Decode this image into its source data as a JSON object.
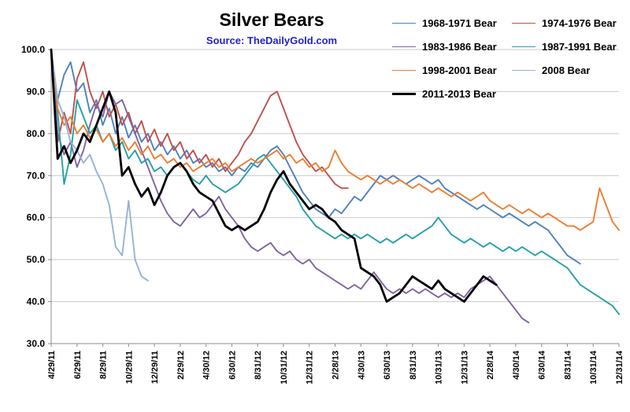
{
  "colors": {
    "background": "#FFFFFF",
    "subtitle_text": "#2222CC",
    "grid": "#C9C9C9",
    "axis": "#8C8C8C",
    "label_text": "#000000"
  },
  "chart_data": {
    "type": "line",
    "title": "Silver Bears",
    "subtitle": "Source: TheDailyGold.com",
    "grid": "horizontal",
    "legend_position": "top-right",
    "x_axis": {
      "tick_interval_months": 2,
      "tick_labels": [
        "4/29/11",
        "6/29/11",
        "8/29/11",
        "10/29/11",
        "12/29/11",
        "2/29/12",
        "4/30/12",
        "6/30/12",
        "8/31/12",
        "10/31/12",
        "12/31/12",
        "2/28/13",
        "4/30/13",
        "6/30/13",
        "8/31/13",
        "10/31/13",
        "12/31/13",
        "2/28/14",
        "4/30/14",
        "6/30/14",
        "8/31/14",
        "10/31/14",
        "12/31/14"
      ]
    },
    "y_axis": {
      "min": 30,
      "max": 100,
      "step": 10,
      "tick_labels": [
        "30.0",
        "40.0",
        "50.0",
        "60.0",
        "70.0",
        "80.0",
        "90.0",
        "100.0"
      ]
    },
    "series": [
      {
        "name": "1968-1971 Bear",
        "color": "#4F81BD",
        "line_width": 1.9,
        "start_month": 0,
        "step_months": 0.5,
        "values": [
          100,
          88,
          94,
          97,
          90,
          92,
          85,
          88,
          82,
          86,
          80,
          84,
          79,
          82,
          78,
          80,
          76,
          78,
          75,
          77,
          74,
          76,
          73,
          74,
          72,
          73,
          71,
          72,
          70,
          72,
          71,
          73,
          72,
          74,
          76,
          77,
          75,
          72,
          69,
          66,
          64,
          62,
          61,
          60,
          62,
          61,
          63,
          65,
          64,
          66,
          68,
          70,
          69,
          70,
          69,
          68,
          69,
          70,
          69,
          68,
          69,
          67,
          66,
          65,
          64,
          63,
          62,
          63,
          62,
          61,
          60,
          61,
          60,
          59,
          58,
          59,
          58,
          57,
          55,
          53,
          51,
          50,
          49
        ]
      },
      {
        "name": "1974-1976 Bear",
        "color": "#C0504D",
        "line_width": 1.9,
        "start_month": 0,
        "step_months": 0.5,
        "values": [
          100,
          78,
          85,
          80,
          93,
          97,
          90,
          86,
          90,
          84,
          87,
          82,
          85,
          80,
          83,
          78,
          81,
          77,
          80,
          76,
          78,
          74,
          76,
          73,
          75,
          72,
          74,
          71,
          73,
          75,
          78,
          80,
          83,
          86,
          89,
          90,
          86,
          82,
          78,
          75,
          73,
          71,
          72,
          70,
          68,
          67,
          67
        ]
      },
      {
        "name": "1983-1986 Bear",
        "color": "#8064A2",
        "line_width": 1.9,
        "start_month": 0,
        "step_months": 0.5,
        "values": [
          100,
          80,
          75,
          78,
          72,
          76,
          82,
          87,
          84,
          90,
          87,
          88,
          84,
          80,
          76,
          72,
          68,
          64,
          61,
          59,
          58,
          60,
          62,
          60,
          61,
          63,
          65,
          62,
          60,
          58,
          55,
          53,
          52,
          53,
          54,
          52,
          51,
          52,
          50,
          49,
          50,
          48,
          47,
          46,
          45,
          44,
          43,
          44,
          43,
          45,
          47,
          45,
          43,
          42,
          43,
          42,
          43,
          42,
          43,
          42,
          41,
          42,
          41,
          42,
          41,
          43,
          44,
          45,
          46,
          44,
          42,
          40,
          38,
          36,
          35
        ]
      },
      {
        "name": "1987-1991 Bear",
        "color": "#26A0A7",
        "line_width": 1.9,
        "start_month": 0,
        "step_months": 0.5,
        "values": [
          100,
          85,
          68,
          75,
          88,
          84,
          80,
          82,
          78,
          80,
          76,
          78,
          74,
          76,
          73,
          74,
          71,
          72,
          70,
          72,
          73,
          71,
          69,
          68,
          70,
          68,
          67,
          66,
          67,
          68,
          70,
          72,
          74,
          75,
          73,
          71,
          69,
          67,
          65,
          62,
          60,
          58,
          57,
          56,
          55,
          56,
          55,
          56,
          55,
          56,
          55,
          54,
          55,
          54,
          55,
          56,
          55,
          56,
          57,
          58,
          60,
          58,
          56,
          55,
          54,
          55,
          54,
          53,
          54,
          53,
          52,
          53,
          52,
          53,
          52,
          51,
          52,
          51,
          50,
          49,
          48,
          46,
          44,
          43,
          42,
          41,
          40,
          39,
          37
        ]
      },
      {
        "name": "1998-2001 Bear",
        "color": "#ED7D31",
        "line_width": 1.9,
        "start_month": 0,
        "step_months": 0.5,
        "values": [
          100,
          86,
          82,
          84,
          80,
          82,
          79,
          81,
          78,
          80,
          77,
          79,
          76,
          78,
          75,
          77,
          74,
          75,
          73,
          74,
          72,
          73,
          71,
          72,
          73,
          74,
          72,
          73,
          71,
          72,
          73,
          74,
          73,
          74,
          75,
          76,
          74,
          75,
          73,
          74,
          72,
          73,
          71,
          72,
          76,
          73,
          71,
          70,
          69,
          70,
          69,
          68,
          69,
          68,
          69,
          68,
          67,
          68,
          67,
          66,
          67,
          66,
          65,
          66,
          65,
          64,
          65,
          66,
          64,
          63,
          62,
          63,
          62,
          61,
          62,
          61,
          60,
          61,
          60,
          59,
          58,
          58,
          57,
          58,
          59,
          67,
          63,
          59,
          57
        ]
      },
      {
        "name": "2008 Bear",
        "color": "#95B3D7",
        "line_width": 1.9,
        "start_month": 0,
        "step_months": 0.5,
        "values": [
          100,
          88,
          84,
          78,
          76,
          73,
          75,
          71,
          68,
          63,
          53,
          51,
          64,
          50,
          46,
          45
        ]
      },
      {
        "name": "2011-2013 Bear",
        "color": "#000000",
        "line_width": 2.8,
        "start_month": 0,
        "step_months": 0.5,
        "values": [
          100,
          74,
          77,
          73,
          76,
          80,
          78,
          82,
          86,
          90,
          85,
          70,
          72,
          68,
          65,
          67,
          63,
          66,
          70,
          72,
          73,
          71,
          68,
          66,
          65,
          64,
          61,
          58,
          57,
          58,
          57,
          58,
          59,
          62,
          66,
          69,
          71,
          68,
          66,
          64,
          62,
          63,
          62,
          60,
          59,
          57,
          56,
          55,
          48,
          47,
          46,
          44,
          40,
          41,
          42,
          44,
          46,
          45,
          44,
          43,
          45,
          43,
          42,
          41,
          40,
          42,
          44,
          46,
          45,
          44
        ]
      }
    ]
  }
}
